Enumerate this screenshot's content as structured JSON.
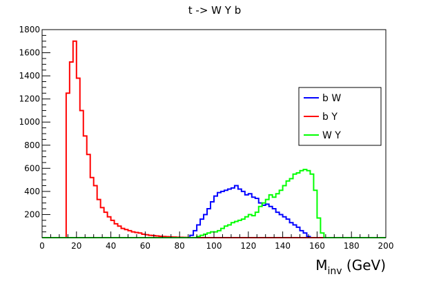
{
  "chart_data": {
    "type": "histogram",
    "title": "t -> W Y b",
    "xlabel": "M",
    "xlabel_sub": "inv",
    "xlabel_suffix": " (GeV)",
    "ylabel": "",
    "xlim": [
      0,
      200
    ],
    "ylim": [
      0,
      1800
    ],
    "bin_width": 2,
    "grid": false,
    "x_ticks": [
      0,
      20,
      40,
      60,
      80,
      100,
      120,
      140,
      160,
      180,
      200
    ],
    "y_ticks": [
      200,
      400,
      600,
      800,
      1000,
      1200,
      1400,
      1600,
      1800
    ],
    "legend": {
      "position": "right",
      "entries": [
        "b W",
        "b Y",
        "W Y"
      ]
    },
    "series": [
      {
        "name": "b W",
        "color": "#0000ff",
        "x_start": 84,
        "values": [
          0,
          20,
          60,
          110,
          160,
          200,
          250,
          310,
          360,
          390,
          400,
          410,
          420,
          430,
          450,
          420,
          400,
          370,
          380,
          350,
          340,
          300,
          280,
          290,
          270,
          250,
          220,
          200,
          180,
          160,
          130,
          110,
          90,
          60,
          40,
          10,
          0
        ]
      },
      {
        "name": "b Y",
        "color": "#ff0000",
        "x_start": 14,
        "values": [
          1250,
          1520,
          1700,
          1380,
          1100,
          880,
          720,
          520,
          450,
          330,
          260,
          220,
          180,
          150,
          120,
          100,
          80,
          70,
          60,
          50,
          45,
          40,
          30,
          25,
          20,
          18,
          15,
          12,
          10,
          8,
          6,
          5,
          4,
          3,
          2,
          1,
          0
        ]
      },
      {
        "name": "W Y",
        "color": "#00ff00",
        "x_start": 88,
        "values": [
          0,
          10,
          20,
          30,
          40,
          50,
          50,
          60,
          80,
          100,
          110,
          130,
          140,
          150,
          160,
          180,
          200,
          190,
          220,
          270,
          300,
          330,
          370,
          350,
          380,
          410,
          450,
          490,
          510,
          550,
          560,
          580,
          590,
          580,
          550,
          410,
          170,
          40,
          0
        ]
      }
    ]
  }
}
